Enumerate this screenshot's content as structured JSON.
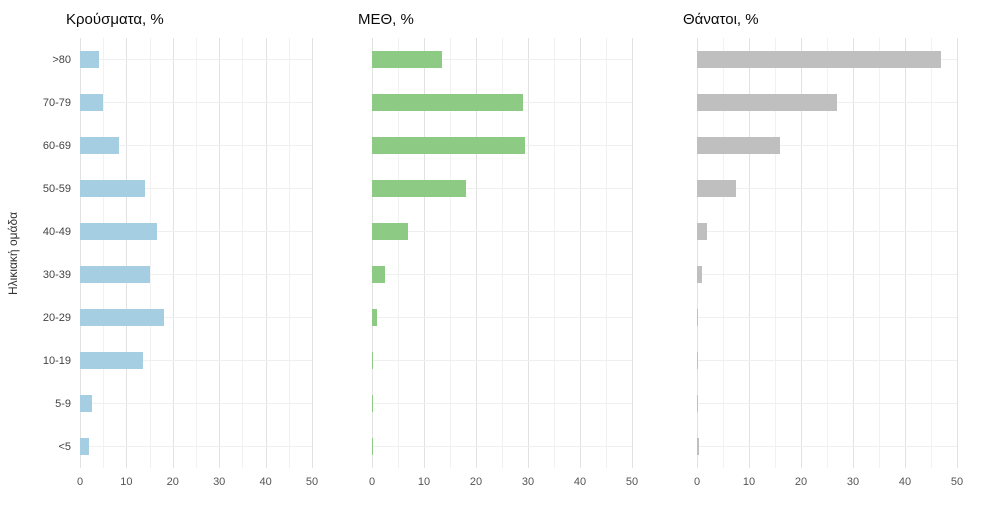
{
  "y_axis_label": "Ηλικιακή ομάδα",
  "chart_data": [
    {
      "type": "bar",
      "orientation": "horizontal",
      "title": "Κρούσματα, %",
      "categories": [
        ">80",
        "70-79",
        "60-69",
        "50-59",
        "40-49",
        "30-39",
        "20-29",
        "10-19",
        "5-9",
        "<5"
      ],
      "values": [
        4,
        5,
        8.5,
        14,
        16.5,
        15,
        18,
        13.5,
        2.5,
        2
      ],
      "color": "#a6cee3",
      "xlim": [
        0,
        50
      ],
      "xticks": [
        0,
        10,
        20,
        30,
        40,
        50
      ],
      "grid": true,
      "legend": false
    },
    {
      "type": "bar",
      "orientation": "horizontal",
      "title": "ΜΕΘ, %",
      "categories": [
        ">80",
        "70-79",
        "60-69",
        "50-59",
        "40-49",
        "30-39",
        "20-29",
        "10-19",
        "5-9",
        "<5"
      ],
      "values": [
        13.5,
        29,
        29.5,
        18,
        7,
        2.5,
        1,
        0.2,
        0.1,
        0.1
      ],
      "color": "#8dcb85",
      "xlim": [
        0,
        50
      ],
      "xticks": [
        0,
        10,
        20,
        30,
        40,
        50
      ],
      "grid": true,
      "legend": false
    },
    {
      "type": "bar",
      "orientation": "horizontal",
      "title": "Θάνατοι, %",
      "categories": [
        ">80",
        "70-79",
        "60-69",
        "50-59",
        "40-49",
        "30-39",
        "20-29",
        "10-19",
        "5-9",
        "<5"
      ],
      "values": [
        47,
        27,
        16,
        7.5,
        2,
        1,
        0.2,
        0.1,
        0.1,
        0.3
      ],
      "color": "#bfbfbf",
      "xlim": [
        0,
        50
      ],
      "xticks": [
        0,
        10,
        20,
        30,
        40,
        50
      ],
      "grid": true,
      "legend": false
    }
  ]
}
